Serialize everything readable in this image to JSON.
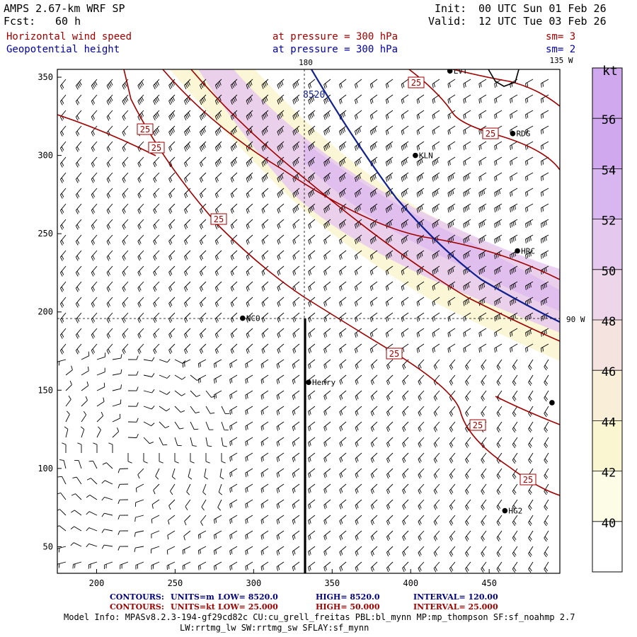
{
  "header": {
    "model_title": "AMPS 2.67-km WRF SP",
    "fcst_label": "Fcst:",
    "fcst_value": "60 h",
    "init_label": "Init:",
    "init_value": "00 UTC Sun 01 Feb 26",
    "valid_label": "Valid:",
    "valid_value": "12 UTC Tue 03 Feb 26",
    "field1_name": "Horizontal wind speed",
    "field1_level": "at pressure =  300 hPa",
    "field1_sm": "sm= 3",
    "field2_name": "Geopotential height",
    "field2_level": "at pressure =  300 hPa",
    "field2_sm": "sm= 2"
  },
  "map": {
    "longitude_labels": {
      "top": "180",
      "top_right": "135 W",
      "right": "90 W"
    },
    "x_ticks": [
      200,
      250,
      300,
      350,
      400,
      450
    ],
    "y_ticks": [
      50,
      100,
      150,
      200,
      250,
      300,
      350
    ],
    "x_range": [
      175,
      495
    ],
    "y_range": [
      33,
      355
    ],
    "stations": [
      {
        "name": "LVT",
        "x": 425,
        "y": 354
      },
      {
        "name": "RDG",
        "x": 465,
        "y": 314
      },
      {
        "name": "KLN",
        "x": 403,
        "y": 300
      },
      {
        "name": "HRC",
        "x": 468,
        "y": 239
      },
      {
        "name": "NCO",
        "x": 293,
        "y": 196
      },
      {
        "name": "Henry",
        "x": 335,
        "y": 155
      },
      {
        "name": "",
        "x": 490,
        "y": 142
      },
      {
        "name": "HG2",
        "x": 460,
        "y": 73
      }
    ],
    "contour_label_wind": "25",
    "contour_label_height": "8520",
    "cross_section_x": 334
  },
  "colorbar": {
    "unit": "kt",
    "levels": [
      40,
      42,
      44,
      46,
      48,
      50,
      52,
      54,
      56
    ],
    "colors": [
      "#ffffff",
      "#fdfce6",
      "#fbf6d2",
      "#f9efd8",
      "#f5e3e0",
      "#eed6ea",
      "#e5c8ee",
      "#d8b6f0",
      "#cfa8ee"
    ]
  },
  "footer": {
    "contours_label": "CONTOURS:",
    "line1_units": "UNITS=m",
    "line1_low": "LOW=   8520.0",
    "line1_high": "HIGH=   8520.0",
    "line1_interval": "INTERVAL=    120.00",
    "line2_units": "UNITS=kt",
    "line2_low": "LOW=   25.000",
    "line2_high": "HIGH=  50.000",
    "line2_interval": "INTERVAL=    25.000",
    "model_info_1": "Model Info: MPASv8.2.3-194-gf29cd82c CU:cu_grell_freitas PBL:bl_mynn MP:mp_thompson SF:sf_noahmp 2.7",
    "model_info_2": "LW:rrtmg_lw SW:rrtmg_sw SFLAY:sf_mynn"
  }
}
